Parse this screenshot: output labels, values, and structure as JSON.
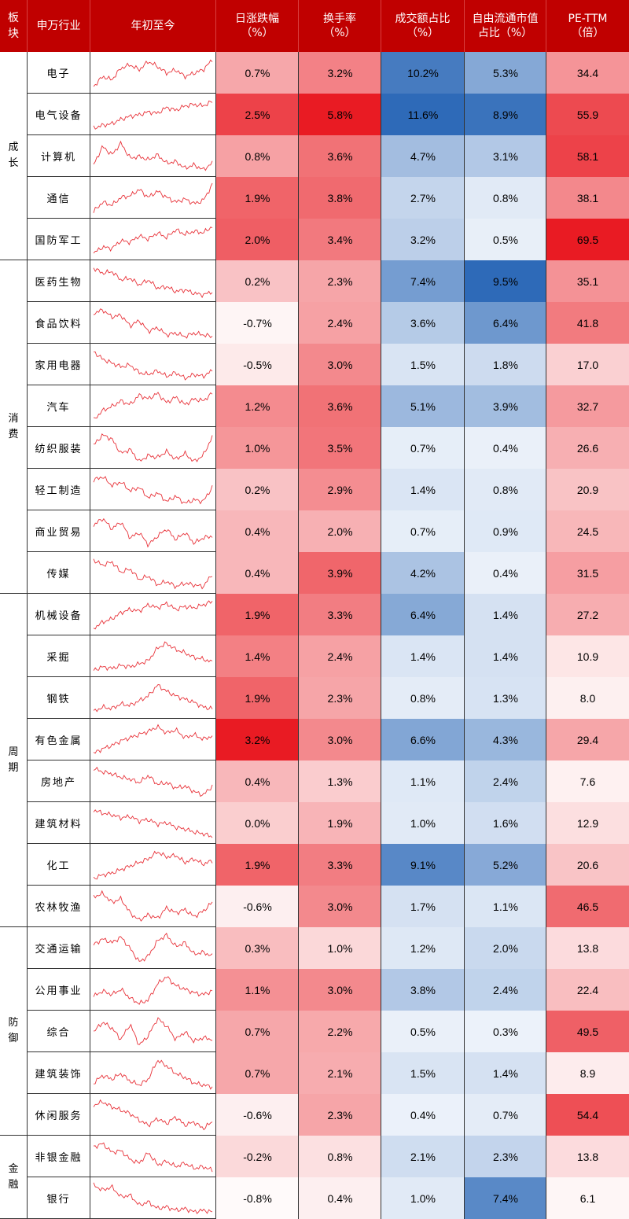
{
  "header": {
    "col_sector": "板块",
    "col_industry": "申万行业",
    "col_ytd": "年初至今",
    "col_daily": "日涨跌幅（%）",
    "col_turnover": "换手率（%）",
    "col_volume_share": "成交额占比（%）",
    "col_float_share": "自由流通市值占比（%）",
    "col_pe": "PE-TTM（倍）"
  },
  "colors": {
    "header_bg": "#C00000",
    "positive": "#E8141C",
    "negative_base": "#FFFFFF",
    "blue_dark": "#2E6AB8"
  },
  "sectors": [
    {
      "name": "成长",
      "rows": [
        0,
        4
      ]
    },
    {
      "name": "消费",
      "rows": [
        5,
        12
      ]
    },
    {
      "name": "周期",
      "rows": [
        13,
        20
      ]
    },
    {
      "name": "防御",
      "rows": [
        21,
        25
      ]
    },
    {
      "name": "金融",
      "rows": [
        26,
        27
      ]
    }
  ],
  "rows": [
    {
      "industry": "电子",
      "daily": "0.7%",
      "turnover": "3.2%",
      "volume_share": "10.2%",
      "float_share": "5.3%",
      "pe": "34.4",
      "trend": [
        1,
        1.6,
        1.4,
        2.1,
        2.3,
        2.0,
        2.5,
        2.2,
        1.8,
        2.0,
        1.6,
        1.8,
        2.0,
        2.6
      ]
    },
    {
      "industry": "电气设备",
      "daily": "2.5%",
      "turnover": "5.8%",
      "volume_share": "11.6%",
      "float_share": "8.9%",
      "pe": "55.9",
      "trend": [
        1,
        1.2,
        1.3,
        1.6,
        1.8,
        1.9,
        2.1,
        2.0,
        2.4,
        2.2,
        2.5,
        2.6,
        2.5,
        2.8
      ]
    },
    {
      "industry": "计算机",
      "daily": "0.8%",
      "turnover": "3.6%",
      "volume_share": "4.7%",
      "float_share": "3.1%",
      "pe": "58.1",
      "trend": [
        1.4,
        2.5,
        2.0,
        2.7,
        1.8,
        1.9,
        1.7,
        2.0,
        1.5,
        1.6,
        1.2,
        1.4,
        1.1,
        1.5
      ]
    },
    {
      "industry": "通信",
      "daily": "1.9%",
      "turnover": "3.8%",
      "volume_share": "2.7%",
      "float_share": "0.8%",
      "pe": "38.1",
      "trend": [
        1,
        1.6,
        1.4,
        1.9,
        2.0,
        2.4,
        1.9,
        2.3,
        1.9,
        1.6,
        1.8,
        1.5,
        1.7,
        2.7
      ]
    },
    {
      "industry": "国防军工",
      "daily": "2.0%",
      "turnover": "3.4%",
      "volume_share": "3.2%",
      "float_share": "0.5%",
      "pe": "69.5",
      "trend": [
        1,
        1.4,
        1.3,
        1.8,
        1.7,
        2.1,
        1.9,
        2.3,
        2.0,
        2.5,
        2.2,
        2.4,
        2.3,
        2.7
      ]
    },
    {
      "industry": "医药生物",
      "daily": "0.2%",
      "turnover": "2.3%",
      "volume_share": "7.4%",
      "float_share": "9.5%",
      "pe": "35.1",
      "trend": [
        2.7,
        2.4,
        2.5,
        2.0,
        2.1,
        1.7,
        2.0,
        1.5,
        1.6,
        1.3,
        1.4,
        1.2,
        1.1,
        1.3
      ]
    },
    {
      "industry": "食品饮料",
      "daily": "-0.7%",
      "turnover": "2.4%",
      "volume_share": "3.6%",
      "float_share": "6.4%",
      "pe": "41.8",
      "trend": [
        2.3,
        2.5,
        2.1,
        2.2,
        1.6,
        1.9,
        1.3,
        1.5,
        1.1,
        1.2,
        1.0,
        1.2,
        1.1,
        1.0
      ]
    },
    {
      "industry": "家用电器",
      "daily": "-0.5%",
      "turnover": "3.0%",
      "volume_share": "1.5%",
      "float_share": "1.8%",
      "pe": "17.0",
      "trend": [
        2.6,
        2.2,
        2.0,
        1.8,
        1.9,
        1.5,
        1.4,
        1.6,
        1.3,
        1.5,
        1.2,
        1.4,
        1.3,
        1.6
      ]
    },
    {
      "industry": "汽车",
      "daily": "1.2%",
      "turnover": "3.6%",
      "volume_share": "5.1%",
      "float_share": "3.9%",
      "pe": "32.7",
      "trend": [
        1,
        1.5,
        1.7,
        2.0,
        1.8,
        2.3,
        2.1,
        2.4,
        1.9,
        2.2,
        1.8,
        2.1,
        2.0,
        2.4
      ]
    },
    {
      "industry": "纺织服装",
      "daily": "1.0%",
      "turnover": "3.5%",
      "volume_share": "0.7%",
      "float_share": "0.4%",
      "pe": "26.6",
      "trend": [
        2.0,
        2.5,
        2.3,
        1.6,
        1.8,
        1.2,
        1.5,
        1.4,
        1.7,
        1.3,
        1.6,
        1.2,
        1.5,
        2.4
      ]
    },
    {
      "industry": "轻工制造",
      "daily": "0.2%",
      "turnover": "2.9%",
      "volume_share": "1.4%",
      "float_share": "0.8%",
      "pe": "20.9",
      "trend": [
        2.4,
        2.6,
        2.1,
        2.3,
        1.8,
        2.0,
        1.4,
        1.7,
        1.2,
        1.5,
        1.1,
        1.3,
        1.2,
        2.0
      ]
    },
    {
      "industry": "商业贸易",
      "daily": "0.4%",
      "turnover": "2.0%",
      "volume_share": "0.7%",
      "float_share": "0.9%",
      "pe": "24.5",
      "trend": [
        2.2,
        2.6,
        2.0,
        2.4,
        1.5,
        1.8,
        1.1,
        1.6,
        2.0,
        1.4,
        1.8,
        1.2,
        1.5,
        1.6
      ]
    },
    {
      "industry": "传媒",
      "daily": "0.4%",
      "turnover": "3.9%",
      "volume_share": "4.2%",
      "float_share": "0.4%",
      "pe": "31.5",
      "trend": [
        2.5,
        2.2,
        2.4,
        1.8,
        2.0,
        1.4,
        1.6,
        1.1,
        1.3,
        1.0,
        1.2,
        1.1,
        1.0,
        1.7
      ]
    },
    {
      "industry": "机械设备",
      "daily": "1.9%",
      "turnover": "3.3%",
      "volume_share": "6.4%",
      "float_share": "1.4%",
      "pe": "27.2",
      "trend": [
        1,
        1.4,
        1.6,
        2.0,
        2.2,
        2.1,
        2.5,
        2.3,
        2.6,
        2.2,
        2.4,
        2.3,
        2.5,
        2.7
      ]
    },
    {
      "industry": "采掘",
      "daily": "1.4%",
      "turnover": "2.4%",
      "volume_share": "1.4%",
      "float_share": "1.4%",
      "pe": "10.9",
      "trend": [
        1.0,
        1.2,
        1.1,
        1.3,
        1.2,
        1.4,
        1.6,
        2.4,
        2.7,
        2.3,
        2.1,
        1.8,
        1.7,
        1.5
      ]
    },
    {
      "industry": "钢铁",
      "daily": "1.9%",
      "turnover": "2.3%",
      "volume_share": "0.8%",
      "float_share": "1.3%",
      "pe": "8.0",
      "trend": [
        1.0,
        1.3,
        1.2,
        1.5,
        1.4,
        1.7,
        2.0,
        2.7,
        2.3,
        2.0,
        1.8,
        1.6,
        1.3,
        1.2
      ]
    },
    {
      "industry": "有色金属",
      "daily": "3.2%",
      "turnover": "3.0%",
      "volume_share": "6.6%",
      "float_share": "4.3%",
      "pe": "29.4",
      "trend": [
        1.0,
        1.3,
        1.5,
        1.8,
        2.0,
        2.2,
        2.4,
        2.7,
        2.3,
        2.5,
        2.0,
        2.2,
        1.9,
        2.1
      ]
    },
    {
      "industry": "房地产",
      "daily": "0.4%",
      "turnover": "1.3%",
      "volume_share": "1.1%",
      "float_share": "2.4%",
      "pe": "7.6",
      "trend": [
        2.6,
        2.4,
        2.3,
        2.1,
        2.0,
        1.8,
        2.2,
        1.7,
        1.8,
        1.5,
        1.6,
        1.3,
        1.1,
        1.6
      ]
    },
    {
      "industry": "建筑材料",
      "daily": "0.0%",
      "turnover": "1.9%",
      "volume_share": "1.0%",
      "float_share": "1.6%",
      "pe": "12.9",
      "trend": [
        2.7,
        2.5,
        2.4,
        2.2,
        2.3,
        2.0,
        2.1,
        1.8,
        1.9,
        1.6,
        1.5,
        1.3,
        1.2,
        1.0
      ]
    },
    {
      "industry": "化工",
      "daily": "1.9%",
      "turnover": "3.3%",
      "volume_share": "9.1%",
      "float_share": "5.2%",
      "pe": "20.6",
      "trend": [
        1.0,
        1.2,
        1.3,
        1.5,
        1.7,
        1.9,
        2.1,
        2.5,
        2.2,
        2.3,
        1.9,
        2.1,
        1.8,
        2.0
      ]
    },
    {
      "industry": "农林牧渔",
      "daily": "-0.6%",
      "turnover": "3.0%",
      "volume_share": "1.7%",
      "float_share": "1.1%",
      "pe": "46.5",
      "trend": [
        2.5,
        2.7,
        2.2,
        2.4,
        1.6,
        1.2,
        1.5,
        1.3,
        1.9,
        1.6,
        1.8,
        1.4,
        1.7,
        2.2
      ]
    },
    {
      "industry": "交通运输",
      "daily": "0.3%",
      "turnover": "1.0%",
      "volume_share": "1.2%",
      "float_share": "2.0%",
      "pe": "13.8",
      "trend": [
        2.1,
        2.4,
        2.2,
        2.5,
        1.9,
        1.2,
        1.5,
        2.3,
        2.6,
        2.0,
        2.2,
        1.6,
        1.7,
        1.5
      ]
    },
    {
      "industry": "公用事业",
      "daily": "1.1%",
      "turnover": "3.0%",
      "volume_share": "3.8%",
      "float_share": "2.4%",
      "pe": "22.4",
      "trend": [
        1.6,
        1.9,
        1.7,
        2.0,
        1.5,
        1.2,
        1.4,
        2.3,
        2.7,
        2.2,
        2.0,
        1.8,
        1.7,
        1.9
      ]
    },
    {
      "industry": "综合",
      "daily": "0.7%",
      "turnover": "2.2%",
      "volume_share": "0.5%",
      "float_share": "0.3%",
      "pe": "49.5",
      "trend": [
        2.0,
        2.5,
        2.2,
        1.6,
        2.4,
        1.3,
        1.8,
        2.7,
        2.3,
        1.6,
        2.0,
        1.5,
        1.7,
        1.6
      ]
    },
    {
      "industry": "建筑装饰",
      "daily": "0.7%",
      "turnover": "2.1%",
      "volume_share": "1.5%",
      "float_share": "1.4%",
      "pe": "8.9",
      "trend": [
        1.4,
        1.8,
        1.6,
        1.9,
        1.5,
        1.3,
        1.6,
        2.6,
        2.3,
        1.9,
        1.7,
        1.4,
        1.3,
        1.2
      ]
    },
    {
      "industry": "休闲服务",
      "daily": "-0.6%",
      "turnover": "2.3%",
      "volume_share": "0.4%",
      "float_share": "0.7%",
      "pe": "54.4",
      "trend": [
        2.4,
        2.6,
        2.3,
        2.1,
        1.9,
        1.5,
        1.2,
        1.6,
        1.3,
        1.7,
        1.2,
        1.4,
        1.0,
        1.4
      ]
    },
    {
      "industry": "非银金融",
      "daily": "-0.2%",
      "turnover": "0.8%",
      "volume_share": "2.1%",
      "float_share": "2.3%",
      "pe": "13.8",
      "trend": [
        2.5,
        2.7,
        2.2,
        2.3,
        1.8,
        1.6,
        2.2,
        1.5,
        1.7,
        1.4,
        1.6,
        1.3,
        1.4,
        1.2
      ]
    },
    {
      "industry": "银行",
      "daily": "-0.8%",
      "turnover": "0.4%",
      "volume_share": "1.0%",
      "float_share": "7.4%",
      "pe": "6.1",
      "trend": [
        2.6,
        2.3,
        2.5,
        1.9,
        2.0,
        1.4,
        1.6,
        1.2,
        1.3,
        1.1,
        1.2,
        1.0,
        1.1,
        1.0
      ]
    }
  ]
}
